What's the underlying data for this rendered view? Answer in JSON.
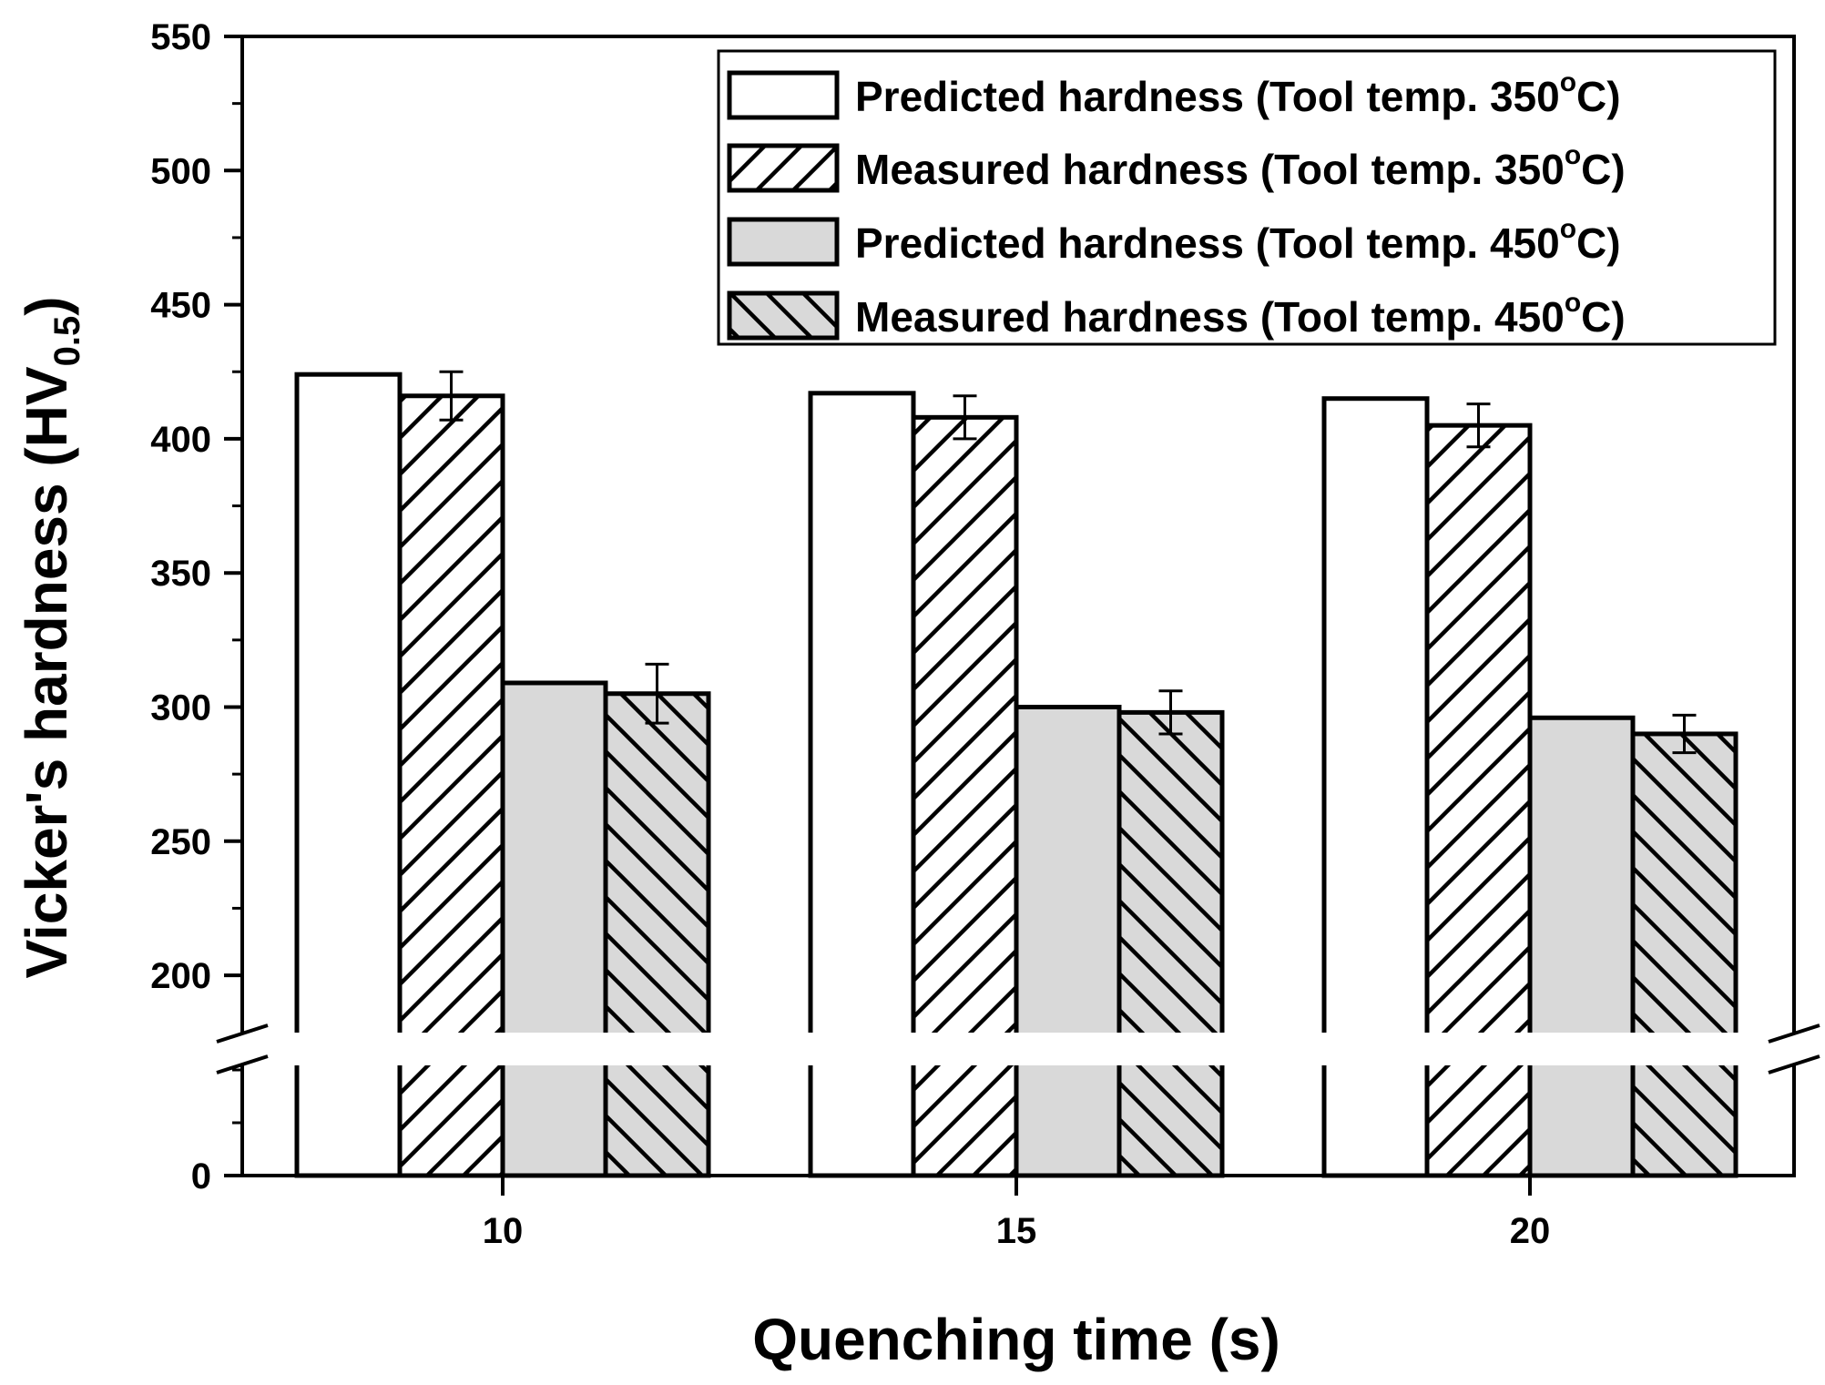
{
  "chart_data": {
    "type": "bar",
    "title": "",
    "xlabel": "Quenching time (s)",
    "ylabel": {
      "main": "Vicker's hardness (HV",
      "subscript": "0.5",
      "close": ")"
    },
    "categories": [
      "10",
      "15",
      "20"
    ],
    "ylim": [
      0,
      550
    ],
    "axis_break": {
      "lower_segment": [
        0,
        50
      ],
      "upper_segment": [
        180,
        550
      ]
    },
    "y_ticks_major": [
      {
        "value": 0,
        "label": "0"
      },
      {
        "value": 200,
        "label": "200"
      },
      {
        "value": 250,
        "label": "250"
      },
      {
        "value": 300,
        "label": "300"
      },
      {
        "value": 350,
        "label": "350"
      },
      {
        "value": 400,
        "label": "400"
      },
      {
        "value": 450,
        "label": "450"
      },
      {
        "value": 500,
        "label": "500"
      },
      {
        "value": 550,
        "label": "550"
      }
    ],
    "y_ticks_minor": [
      25,
      50,
      225,
      275,
      325,
      375,
      425,
      475,
      525
    ],
    "series": [
      {
        "name": "Predicted hardness (Tool temp. 350°C)",
        "legend": {
          "prefix": "Predicted hardness (Tool temp. 350",
          "sup": "o",
          "suffix": "C)"
        },
        "fill": "#ffffff",
        "pattern": "none",
        "values": [
          424,
          417,
          415
        ],
        "errors": null
      },
      {
        "name": "Measured hardness (Tool temp. 350°C)",
        "legend": {
          "prefix": "Measured hardness (Tool temp. 350",
          "sup": "o",
          "suffix": "C)"
        },
        "fill": "#ffffff",
        "pattern": "forward-hatch",
        "values": [
          416,
          408,
          405
        ],
        "errors": [
          9,
          8,
          8
        ]
      },
      {
        "name": "Predicted hardness (Tool temp. 450°C)",
        "legend": {
          "prefix": "Predicted hardness (Tool temp. 450",
          "sup": "o",
          "suffix": "C)"
        },
        "fill": "#d9d9d9",
        "pattern": "none",
        "values": [
          309,
          300,
          296
        ],
        "errors": null
      },
      {
        "name": "Measured hardness (Tool temp. 450°C)",
        "legend": {
          "prefix": "Measured hardness (Tool temp. 450",
          "sup": "o",
          "suffix": "C)"
        },
        "fill": "#d9d9d9",
        "pattern": "back-hatch",
        "values": [
          305,
          298,
          290
        ],
        "errors": [
          11,
          8,
          7
        ]
      }
    ],
    "legend_position": "top-right",
    "grid": false,
    "colors": {
      "axis": "#000000",
      "bar_gray": "#d9d9d9",
      "bar_white": "#ffffff"
    }
  }
}
